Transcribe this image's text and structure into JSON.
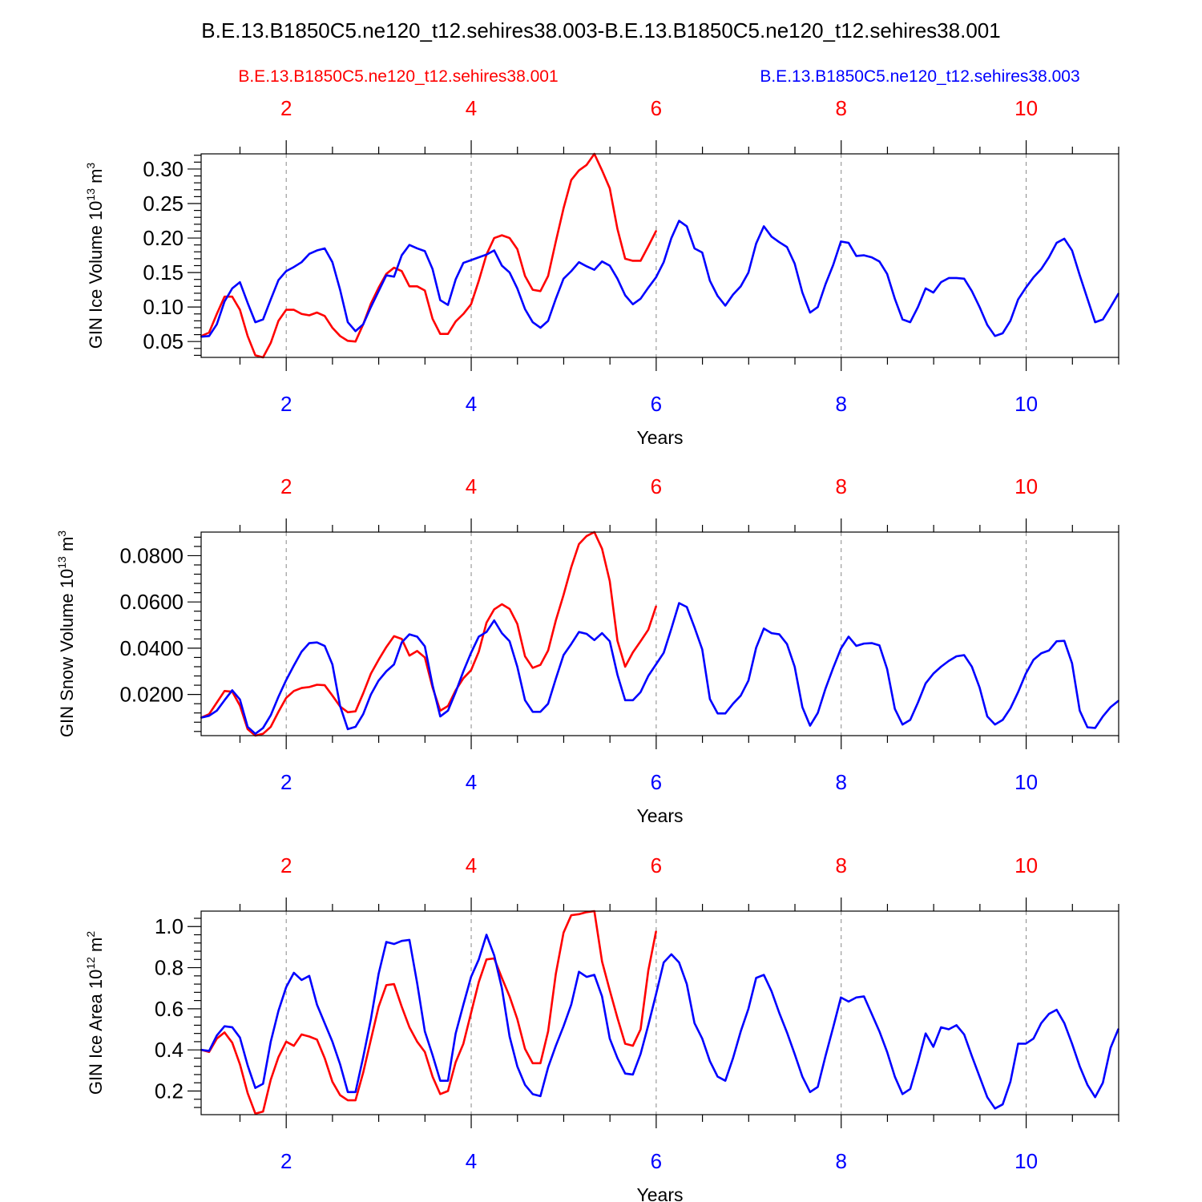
{
  "title": "B.E.13.B1850C5.ne120_t12.sehires38.003-B.E.13.B1850C5.ne120_t12.sehires38.001",
  "legend": {
    "left": {
      "label": "B.E.13.B1850C5.ne120_t12.sehires38.001",
      "color": "#ff0000"
    },
    "right": {
      "label": "B.E.13.B1850C5.ne120_t12.sehires38.003",
      "color": "#0000ff"
    }
  },
  "chart_data": [
    {
      "type": "line",
      "ylabel": "GIN Ice Volume 10",
      "ylabel_exp": "13",
      "ylabel_unit": " m",
      "ylabel_unit_exp": "3",
      "xlabel": "Years",
      "xlim": [
        1.08,
        11.0
      ],
      "ylim": [
        0.027,
        0.322
      ],
      "yticks": [
        0.05,
        0.1,
        0.15,
        0.2,
        0.25,
        0.3
      ],
      "ytick_labels": [
        "0.05",
        "0.10",
        "0.15",
        "0.20",
        "0.25",
        "0.30"
      ],
      "xticks": [
        2,
        4,
        6,
        8,
        10
      ],
      "xtick_labels": [
        "2",
        "4",
        "6",
        "8",
        "10"
      ],
      "series": [
        {
          "name": "B.E.13.B1850C5.ne120_t12.sehires38.001",
          "color": "#ff0000",
          "x_start": 1.083,
          "step": 0.0833,
          "values": [
            0.058,
            0.063,
            0.09,
            0.115,
            0.115,
            0.096,
            0.058,
            0.03,
            0.027,
            0.048,
            0.08,
            0.096,
            0.096,
            0.09,
            0.088,
            0.092,
            0.087,
            0.07,
            0.058,
            0.051,
            0.05,
            0.075,
            0.105,
            0.128,
            0.148,
            0.157,
            0.152,
            0.13,
            0.13,
            0.124,
            0.083,
            0.061,
            0.061,
            0.079,
            0.09,
            0.104,
            0.138,
            0.176,
            0.2,
            0.204,
            0.2,
            0.184,
            0.145,
            0.125,
            0.123,
            0.145,
            0.195,
            0.243,
            0.284,
            0.298,
            0.306,
            0.322,
            0.298,
            0.272,
            0.213,
            0.17,
            0.167,
            0.167,
            0.188,
            0.21
          ]
        },
        {
          "name": "B.E.13.B1850C5.ne120_t12.sehires38.003",
          "color": "#0000ff",
          "x_start": 1.083,
          "step": 0.0833,
          "values": [
            0.057,
            0.058,
            0.075,
            0.108,
            0.127,
            0.136,
            0.106,
            0.078,
            0.082,
            0.111,
            0.139,
            0.152,
            0.158,
            0.165,
            0.177,
            0.182,
            0.185,
            0.165,
            0.125,
            0.078,
            0.065,
            0.075,
            0.1,
            0.123,
            0.146,
            0.144,
            0.175,
            0.19,
            0.185,
            0.181,
            0.155,
            0.11,
            0.103,
            0.14,
            0.164,
            0.168,
            0.172,
            0.176,
            0.182,
            0.16,
            0.15,
            0.127,
            0.097,
            0.078,
            0.07,
            0.08,
            0.112,
            0.141,
            0.152,
            0.165,
            0.159,
            0.154,
            0.166,
            0.16,
            0.141,
            0.117,
            0.104,
            0.112,
            0.128,
            0.143,
            0.165,
            0.2,
            0.225,
            0.217,
            0.185,
            0.179,
            0.138,
            0.116,
            0.102,
            0.118,
            0.13,
            0.15,
            0.192,
            0.217,
            0.202,
            0.194,
            0.187,
            0.163,
            0.121,
            0.092,
            0.1,
            0.133,
            0.161,
            0.195,
            0.193,
            0.174,
            0.175,
            0.172,
            0.166,
            0.148,
            0.112,
            0.082,
            0.078,
            0.1,
            0.127,
            0.121,
            0.136,
            0.142,
            0.142,
            0.141,
            0.123,
            0.1,
            0.074,
            0.058,
            0.062,
            0.08,
            0.111,
            0.128,
            0.143,
            0.155,
            0.172,
            0.193,
            0.199,
            0.182,
            0.146,
            0.112,
            0.078,
            0.082,
            0.1,
            0.119
          ]
        }
      ]
    },
    {
      "type": "line",
      "ylabel": "GIN Snow Volume 10",
      "ylabel_exp": "13",
      "ylabel_unit": " m",
      "ylabel_unit_exp": "3",
      "xlabel": "Years",
      "xlim": [
        1.08,
        11.0
      ],
      "ylim": [
        0.0022,
        0.0902
      ],
      "yticks": [
        0.02,
        0.04,
        0.06,
        0.08
      ],
      "ytick_labels": [
        "0.0200",
        "0.0400",
        "0.0600",
        "0.0800"
      ],
      "xticks": [
        2,
        4,
        6,
        8,
        10
      ],
      "xtick_labels": [
        "2",
        "4",
        "6",
        "8",
        "10"
      ],
      "series": [
        {
          "name": "B.E.13.B1850C5.ne120_t12.sehires38.001",
          "color": "#ff0000",
          "x_start": 1.083,
          "step": 0.0833,
          "values": [
            0.01,
            0.0115,
            0.0165,
            0.0215,
            0.0212,
            0.0152,
            0.005,
            0.0022,
            0.003,
            0.006,
            0.0125,
            0.0185,
            0.0215,
            0.0228,
            0.0232,
            0.0242,
            0.024,
            0.0195,
            0.0148,
            0.0123,
            0.0127,
            0.0205,
            0.029,
            0.035,
            0.0405,
            0.0452,
            0.044,
            0.0368,
            0.0388,
            0.036,
            0.023,
            0.013,
            0.015,
            0.0218,
            0.027,
            0.0305,
            0.0385,
            0.051,
            0.0568,
            0.059,
            0.057,
            0.0505,
            0.0365,
            0.0315,
            0.0328,
            0.039,
            0.052,
            0.063,
            0.075,
            0.085,
            0.0885,
            0.0902,
            0.083,
            0.069,
            0.0432,
            0.032,
            0.0382,
            0.043,
            0.048,
            0.058
          ]
        },
        {
          "name": "B.E.13.B1850C5.ne120_t12.sehires38.003",
          "color": "#0000ff",
          "x_start": 1.083,
          "step": 0.0833,
          "values": [
            0.01,
            0.0108,
            0.013,
            0.0175,
            0.0218,
            0.0178,
            0.006,
            0.003,
            0.0055,
            0.011,
            0.019,
            0.0262,
            0.0325,
            0.0385,
            0.0422,
            0.0425,
            0.041,
            0.033,
            0.015,
            0.005,
            0.006,
            0.0115,
            0.02,
            0.026,
            0.03,
            0.033,
            0.0425,
            0.046,
            0.045,
            0.0408,
            0.024,
            0.0105,
            0.013,
            0.021,
            0.03,
            0.038,
            0.045,
            0.047,
            0.052,
            0.0465,
            0.043,
            0.032,
            0.0175,
            0.0125,
            0.0125,
            0.016,
            0.0268,
            0.037,
            0.0418,
            0.047,
            0.0462,
            0.0435,
            0.0465,
            0.043,
            0.0285,
            0.0175,
            0.0175,
            0.021,
            0.028,
            0.033,
            0.038,
            0.0485,
            0.0595,
            0.0578,
            0.049,
            0.0395,
            0.018,
            0.0118,
            0.0118,
            0.016,
            0.0195,
            0.026,
            0.0402,
            0.0485,
            0.0465,
            0.046,
            0.0418,
            0.032,
            0.0145,
            0.0065,
            0.012,
            0.0225,
            0.0315,
            0.0398,
            0.045,
            0.041,
            0.042,
            0.0422,
            0.0412,
            0.031,
            0.0138,
            0.007,
            0.009,
            0.0165,
            0.0248,
            0.029,
            0.032,
            0.0345,
            0.0365,
            0.037,
            0.032,
            0.023,
            0.0105,
            0.007,
            0.009,
            0.014,
            0.021,
            0.029,
            0.035,
            0.0378,
            0.039,
            0.043,
            0.0432,
            0.0335,
            0.013,
            0.0058,
            0.0055,
            0.0105,
            0.0145,
            0.0172
          ]
        }
      ]
    },
    {
      "type": "line",
      "ylabel": "GIN Ice Area 10",
      "ylabel_exp": "12",
      "ylabel_unit": " m",
      "ylabel_unit_exp": "2",
      "xlabel": "Years",
      "xlim": [
        1.08,
        11.0
      ],
      "ylim": [
        0.085,
        1.075
      ],
      "yticks": [
        0.2,
        0.4,
        0.6,
        0.8,
        1.0
      ],
      "ytick_labels": [
        "0.2",
        "0.4",
        "0.6",
        "0.8",
        "1.0"
      ],
      "xticks": [
        2,
        4,
        6,
        8,
        10
      ],
      "xtick_labels": [
        "2",
        "4",
        "6",
        "8",
        "10"
      ],
      "series": [
        {
          "name": "B.E.13.B1850C5.ne120_t12.sehires38.001",
          "color": "#ff0000",
          "x_start": 1.083,
          "step": 0.0833,
          "values": [
            0.4,
            0.39,
            0.455,
            0.485,
            0.435,
            0.33,
            0.19,
            0.09,
            0.1,
            0.255,
            0.365,
            0.44,
            0.42,
            0.475,
            0.465,
            0.45,
            0.36,
            0.245,
            0.18,
            0.155,
            0.155,
            0.29,
            0.45,
            0.61,
            0.715,
            0.72,
            0.61,
            0.51,
            0.44,
            0.39,
            0.27,
            0.185,
            0.2,
            0.34,
            0.43,
            0.58,
            0.73,
            0.84,
            0.845,
            0.75,
            0.66,
            0.55,
            0.405,
            0.335,
            0.335,
            0.49,
            0.77,
            0.97,
            1.055,
            1.06,
            1.07,
            1.075,
            0.83,
            0.69,
            0.555,
            0.43,
            0.42,
            0.5,
            0.785,
            0.975
          ]
        },
        {
          "name": "B.E.13.B1850C5.ne120_t12.sehires38.003",
          "color": "#0000ff",
          "x_start": 1.083,
          "step": 0.0833,
          "values": [
            0.4,
            0.395,
            0.47,
            0.515,
            0.51,
            0.46,
            0.325,
            0.215,
            0.235,
            0.44,
            0.59,
            0.705,
            0.775,
            0.74,
            0.76,
            0.62,
            0.53,
            0.44,
            0.33,
            0.195,
            0.195,
            0.365,
            0.55,
            0.77,
            0.925,
            0.915,
            0.93,
            0.935,
            0.725,
            0.49,
            0.375,
            0.25,
            0.25,
            0.48,
            0.62,
            0.755,
            0.84,
            0.96,
            0.86,
            0.7,
            0.465,
            0.32,
            0.23,
            0.185,
            0.175,
            0.315,
            0.42,
            0.515,
            0.62,
            0.78,
            0.755,
            0.765,
            0.66,
            0.455,
            0.36,
            0.285,
            0.28,
            0.38,
            0.52,
            0.67,
            0.825,
            0.865,
            0.825,
            0.72,
            0.53,
            0.455,
            0.345,
            0.27,
            0.25,
            0.36,
            0.49,
            0.6,
            0.75,
            0.765,
            0.685,
            0.58,
            0.485,
            0.38,
            0.27,
            0.195,
            0.22,
            0.37,
            0.51,
            0.655,
            0.635,
            0.655,
            0.66,
            0.575,
            0.49,
            0.39,
            0.27,
            0.185,
            0.21,
            0.34,
            0.48,
            0.415,
            0.51,
            0.5,
            0.52,
            0.475,
            0.37,
            0.27,
            0.17,
            0.115,
            0.135,
            0.245,
            0.43,
            0.43,
            0.455,
            0.53,
            0.575,
            0.595,
            0.53,
            0.43,
            0.32,
            0.23,
            0.17,
            0.24,
            0.41,
            0.5
          ]
        }
      ]
    }
  ]
}
